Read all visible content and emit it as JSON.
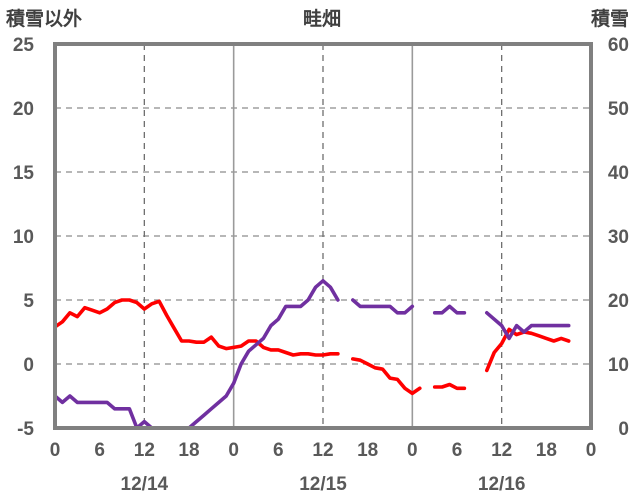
{
  "chart_data": {
    "type": "line",
    "title": "畦畑",
    "y_left_label": "積雪以外",
    "y_right_label": "積雪",
    "y_left_range": [
      -5,
      25
    ],
    "y_right_range": [
      0,
      60
    ],
    "y_left_ticks": [
      "-5",
      "0",
      "5",
      "10",
      "15",
      "20",
      "25"
    ],
    "y_right_ticks": [
      "0",
      "10",
      "20",
      "30",
      "40",
      "50",
      "60"
    ],
    "x_range_hours": [
      0,
      72
    ],
    "x_tick_labels": [
      "0",
      "6",
      "12",
      "18",
      "0",
      "6",
      "12",
      "18",
      "0",
      "6",
      "12",
      "18",
      "0"
    ],
    "date_labels": [
      "12/14",
      "12/15",
      "12/16"
    ],
    "grid": "dashed vertical at 12h, solid at day boundaries, dashed horizontal at 5-unit intervals",
    "series": [
      {
        "color": "#ff0000",
        "axis": "left",
        "points": [
          [
            0,
            2.9
          ],
          [
            1,
            3.3
          ],
          [
            2,
            4.0
          ],
          [
            3,
            3.7
          ],
          [
            4,
            4.4
          ],
          [
            5,
            4.2
          ],
          [
            6,
            4.0
          ],
          [
            7,
            4.3
          ],
          [
            8,
            4.8
          ],
          [
            9,
            5.0
          ],
          [
            10,
            5.0
          ],
          [
            11,
            4.8
          ],
          [
            12,
            4.3
          ],
          [
            13,
            4.7
          ],
          [
            14,
            4.9
          ],
          [
            15,
            3.8
          ],
          [
            16,
            2.8
          ],
          [
            17,
            1.8
          ],
          [
            18,
            1.8
          ],
          [
            19,
            1.7
          ],
          [
            20,
            1.7
          ],
          [
            21,
            2.1
          ],
          [
            22,
            1.4
          ],
          [
            23,
            1.2
          ],
          [
            24,
            1.3
          ],
          [
            25,
            1.4
          ],
          [
            26,
            1.8
          ],
          [
            27,
            1.8
          ],
          [
            28,
            1.3
          ],
          [
            29,
            1.1
          ],
          [
            30,
            1.1
          ],
          [
            31,
            0.9
          ],
          [
            32,
            0.7
          ],
          [
            33,
            0.8
          ],
          [
            34,
            0.8
          ],
          [
            35,
            0.7
          ],
          [
            36,
            0.7
          ],
          [
            37,
            0.8
          ],
          [
            38,
            0.8
          ],
          null,
          [
            40,
            0.4
          ],
          [
            41,
            0.3
          ],
          [
            42,
            0.0
          ],
          [
            43,
            -0.3
          ],
          [
            44,
            -0.4
          ],
          [
            45,
            -1.1
          ],
          [
            46,
            -1.2
          ],
          [
            47,
            -1.9
          ],
          [
            48,
            -2.3
          ],
          [
            49,
            -1.9
          ],
          null,
          [
            51,
            -1.8
          ],
          [
            52,
            -1.8
          ],
          [
            53,
            -1.6
          ],
          [
            54,
            -1.9
          ],
          [
            55,
            -1.9
          ],
          null,
          [
            58,
            -0.5
          ],
          [
            59,
            0.9
          ],
          [
            60,
            1.6
          ],
          [
            61,
            2.7
          ],
          [
            62,
            2.3
          ],
          [
            63,
            2.5
          ],
          [
            64,
            2.4
          ],
          [
            65,
            2.2
          ],
          [
            66,
            2.0
          ],
          [
            67,
            1.8
          ],
          [
            68,
            2.0
          ],
          [
            69,
            1.8
          ]
        ]
      },
      {
        "color": "#7030a0",
        "axis": "right",
        "points": [
          [
            0,
            5.0
          ],
          [
            1,
            4.0
          ],
          [
            2,
            5.0
          ],
          [
            3,
            4.0
          ],
          [
            4,
            4.0
          ],
          [
            5,
            4.0
          ],
          [
            6,
            4.0
          ],
          [
            7,
            4.0
          ],
          [
            8,
            3.0
          ],
          [
            9,
            3.0
          ],
          [
            10,
            3.0
          ],
          [
            11,
            0.0
          ],
          [
            12,
            1.0
          ],
          [
            13,
            0.0
          ],
          [
            14,
            0.0
          ],
          [
            15,
            0.0
          ],
          [
            16,
            0.0
          ],
          [
            17,
            0.0
          ],
          [
            18,
            0.0
          ],
          [
            19,
            1.0
          ],
          [
            20,
            2.0
          ],
          [
            21,
            3.0
          ],
          [
            22,
            4.0
          ],
          [
            23,
            5.0
          ],
          [
            24,
            7.0
          ],
          [
            25,
            10.0
          ],
          [
            26,
            12.0
          ],
          [
            27,
            13.0
          ],
          [
            28,
            14.0
          ],
          [
            29,
            16.0
          ],
          [
            30,
            17.0
          ],
          [
            31,
            19.0
          ],
          [
            32,
            19.0
          ],
          [
            33,
            19.0
          ],
          [
            34,
            20.0
          ],
          [
            35,
            22.0
          ],
          [
            36,
            23.0
          ],
          [
            37,
            22.0
          ],
          [
            38,
            20.0
          ],
          null,
          [
            40,
            20.0
          ],
          [
            41,
            19.0
          ],
          [
            42,
            19.0
          ],
          [
            43,
            19.0
          ],
          [
            44,
            19.0
          ],
          [
            45,
            19.0
          ],
          [
            46,
            18.0
          ],
          [
            47,
            18.0
          ],
          [
            48,
            19.0
          ],
          null,
          [
            51,
            18.0
          ],
          [
            52,
            18.0
          ],
          [
            53,
            19.0
          ],
          [
            54,
            18.0
          ],
          [
            55,
            18.0
          ],
          null,
          [
            58,
            18.0
          ],
          [
            59,
            17.0
          ],
          [
            60,
            16.0
          ],
          [
            61,
            14.0
          ],
          [
            62,
            16.0
          ],
          [
            63,
            15.0
          ],
          [
            64,
            16.0
          ],
          [
            65,
            16.0
          ],
          [
            66,
            16.0
          ],
          [
            67,
            16.0
          ],
          [
            68,
            16.0
          ],
          [
            69,
            16.0
          ]
        ]
      }
    ]
  }
}
